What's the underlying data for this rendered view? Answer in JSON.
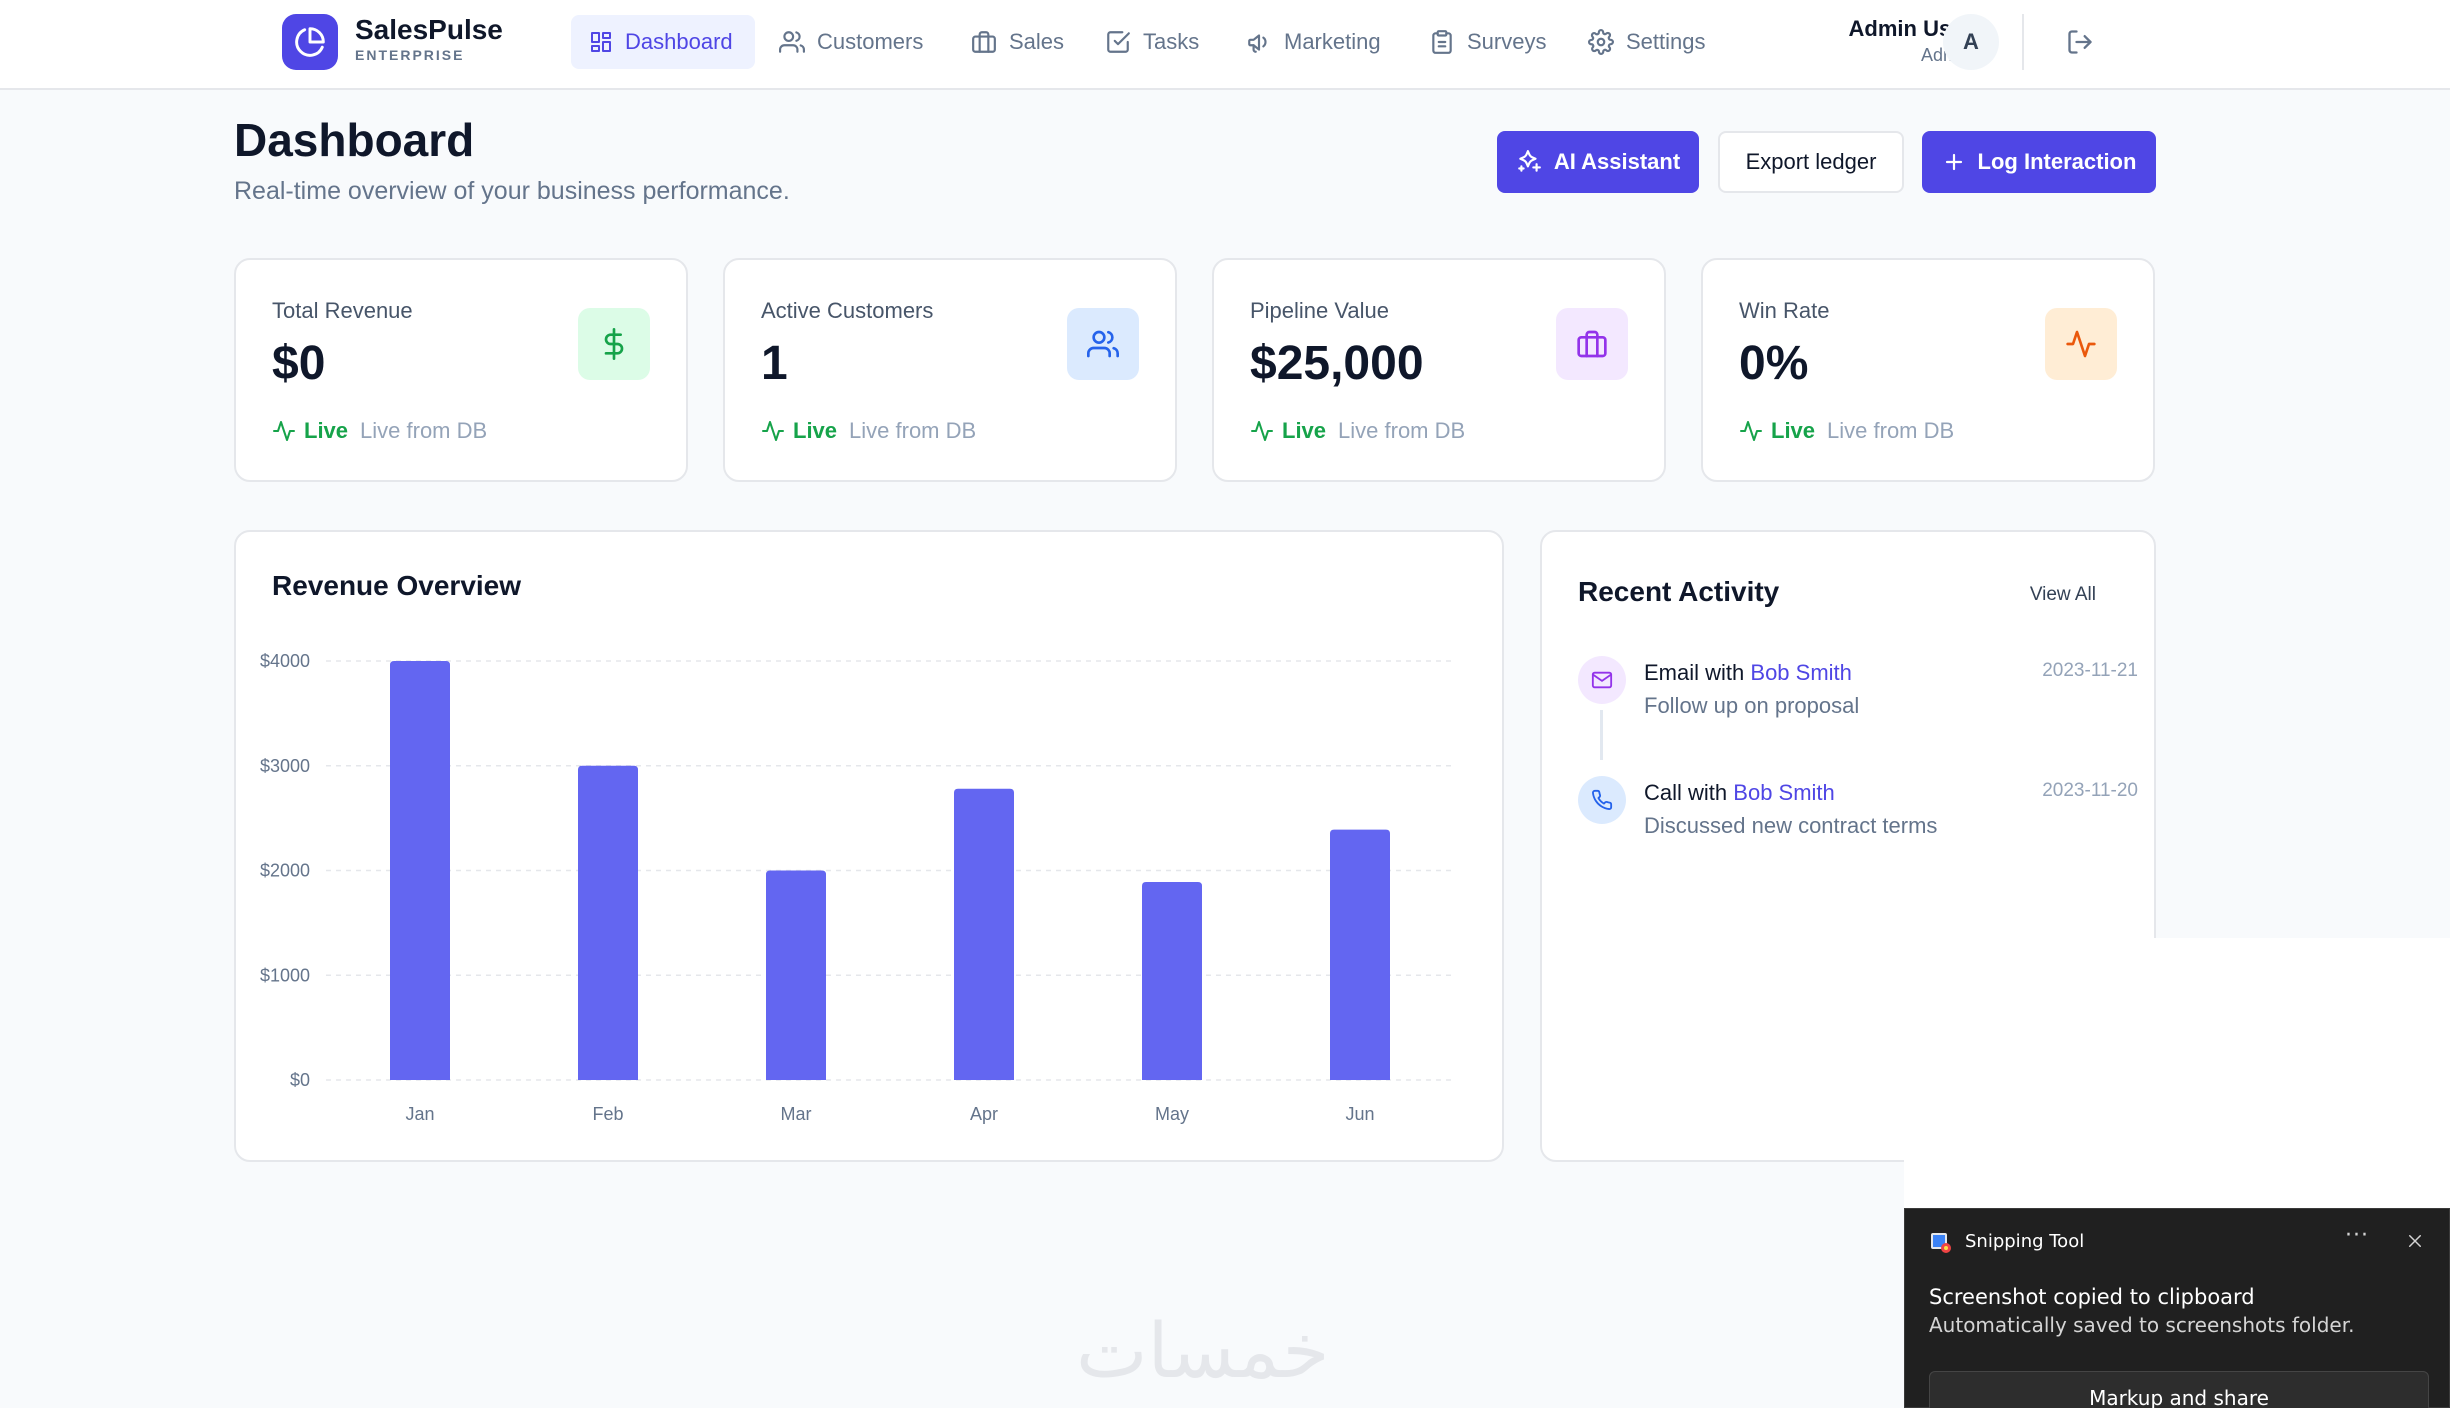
{
  "brand": {
    "name": "SalesPulse",
    "tagline": "ENTERPRISE"
  },
  "nav": [
    {
      "label": "Dashboard",
      "icon": "dashboard-grid-icon",
      "active": true
    },
    {
      "label": "Customers",
      "icon": "users-icon"
    },
    {
      "label": "Sales",
      "icon": "briefcase-icon"
    },
    {
      "label": "Tasks",
      "icon": "check-square-icon"
    },
    {
      "label": "Marketing",
      "icon": "megaphone-icon"
    },
    {
      "label": "Surveys",
      "icon": "clipboard-icon"
    },
    {
      "label": "Settings",
      "icon": "gear-icon"
    }
  ],
  "user": {
    "name": "Admin User",
    "role": "Admin",
    "initial": "A"
  },
  "header": {
    "title": "Dashboard",
    "subtitle": "Real-time overview of your business performance.",
    "ai_button": "AI Assistant",
    "export_button": "Export ledger",
    "log_button": "Log Interaction"
  },
  "stats": [
    {
      "label": "Total Revenue",
      "value": "$0",
      "icon": "dollar-icon",
      "color": "#16a34a",
      "bg": "#dcfce7",
      "live": "Live",
      "note": "Live from DB"
    },
    {
      "label": "Active Customers",
      "value": "1",
      "icon": "users-icon",
      "color": "#2563eb",
      "bg": "#dbeafe",
      "live": "Live",
      "note": "Live from DB"
    },
    {
      "label": "Pipeline Value",
      "value": "$25,000",
      "icon": "briefcase-icon",
      "color": "#9333ea",
      "bg": "#f3e8ff",
      "live": "Live",
      "note": "Live from DB"
    },
    {
      "label": "Win Rate",
      "value": "0%",
      "icon": "activity-icon",
      "color": "#ea580c",
      "bg": "#ffedd5",
      "live": "Live",
      "note": "Live from DB"
    }
  ],
  "revenue": {
    "title": "Revenue Overview",
    "chart_data": {
      "type": "bar",
      "categories": [
        "Jan",
        "Feb",
        "Mar",
        "Apr",
        "May",
        "Jun"
      ],
      "values": [
        4000,
        3000,
        2000,
        2780,
        1890,
        2390
      ],
      "yticks": [
        "$0",
        "$1000",
        "$2000",
        "$3000",
        "$4000"
      ],
      "ylim": [
        0,
        4000
      ],
      "grid": true,
      "bar_color": "#6366f1"
    }
  },
  "activity": {
    "title": "Recent Activity",
    "view_all": "View All",
    "items": [
      {
        "type": "Email",
        "with": "with",
        "contact": "Bob Smith",
        "description": "Follow up on proposal",
        "date": "2023-11-21",
        "icon": "mail-icon",
        "icon_color": "#9333ea",
        "icon_bg": "#f3e8ff"
      },
      {
        "type": "Call",
        "with": "with",
        "contact": "Bob Smith",
        "description": "Discussed new contract terms",
        "date": "2023-11-20",
        "icon": "phone-icon",
        "icon_color": "#2563eb",
        "icon_bg": "#dbeafe"
      }
    ]
  },
  "toast": {
    "app": "Snipping Tool",
    "more": "···",
    "title": "Screenshot copied to clipboard",
    "body": "Automatically saved to screenshots folder.",
    "button": "Markup and share"
  },
  "watermark": "خمسات"
}
